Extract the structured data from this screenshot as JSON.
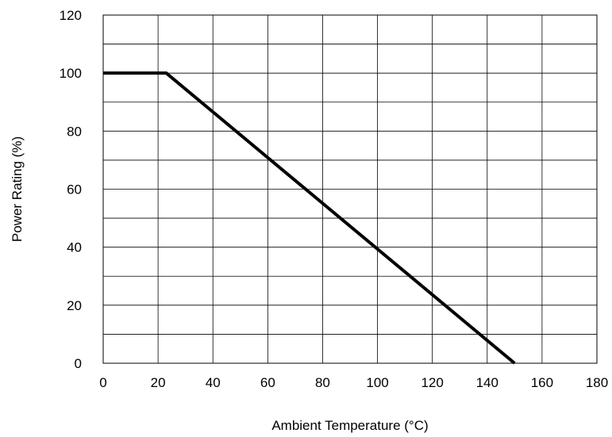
{
  "chart_data": {
    "type": "line",
    "title": "",
    "xlabel": "Ambient Temperature (°C)",
    "ylabel": "Power Rating (%)",
    "xlim": [
      0,
      180
    ],
    "ylim": [
      0,
      120
    ],
    "x_ticks": [
      "0",
      "20",
      "40",
      "60",
      "80",
      "100",
      "120",
      "140",
      "160",
      "180"
    ],
    "y_ticks": [
      "0",
      "20",
      "40",
      "60",
      "80",
      "100",
      "120"
    ],
    "x_grid_step": 20,
    "y_grid_step": 10,
    "grid": true,
    "series": [
      {
        "x": [
          0,
          23,
          150
        ],
        "y": [
          100,
          100,
          0
        ],
        "color": "#000000"
      }
    ]
  }
}
